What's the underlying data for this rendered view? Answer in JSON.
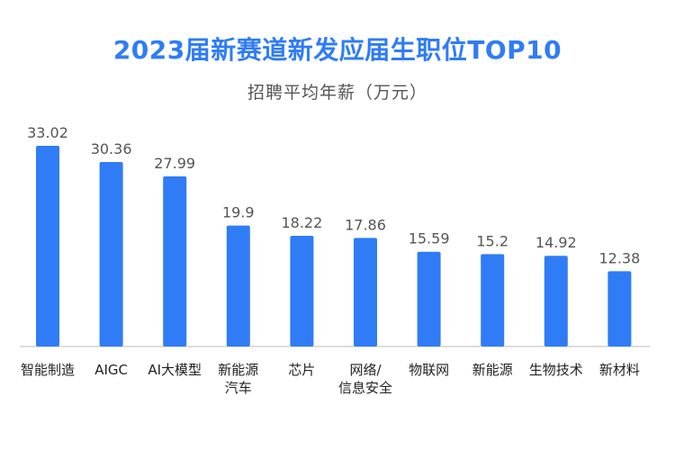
{
  "chart_data": {
    "type": "bar",
    "title": "2023届新赛道新发应届生职位TOP10",
    "subtitle": "招聘平均年薪（万元）",
    "categories": [
      [
        "智能制造"
      ],
      [
        "AIGC"
      ],
      [
        "AI大模型"
      ],
      [
        "新能源",
        "汽车"
      ],
      [
        "芯片"
      ],
      [
        "网络/",
        "信息安全"
      ],
      [
        "物联网"
      ],
      [
        "新能源"
      ],
      [
        "生物技术"
      ],
      [
        "新材料"
      ]
    ],
    "values": [
      33.02,
      30.36,
      27.99,
      19.9,
      18.22,
      17.86,
      15.59,
      15.2,
      14.92,
      12.38
    ],
    "value_labels": [
      "33.02",
      "30.36",
      "27.99",
      "19.9",
      "18.22",
      "17.86",
      "15.59",
      "15.2",
      "14.92",
      "12.38"
    ],
    "ylim": [
      0,
      33.02
    ],
    "xlabel": "",
    "ylabel": "",
    "grid": false,
    "legend": "none",
    "bar_color": "#2f7cf6",
    "axis_color": "#bbbbbb"
  }
}
